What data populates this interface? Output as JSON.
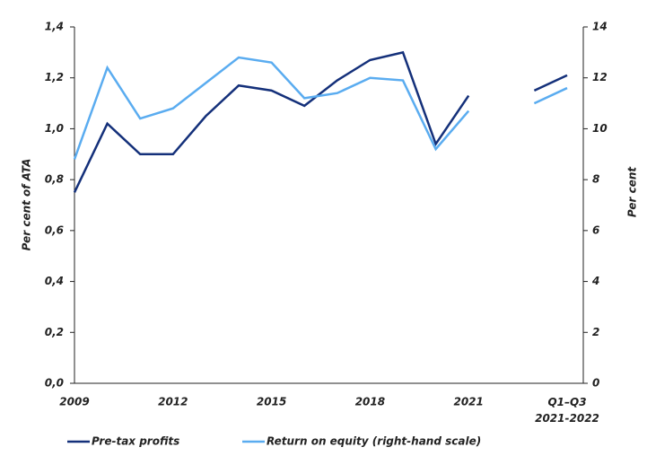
{
  "chart_data": {
    "type": "line",
    "categories": [
      "2009",
      null,
      null,
      "2012",
      null,
      null,
      "2015",
      null,
      null,
      "2018",
      null,
      null,
      "2021",
      null,
      null,
      "Q1–Q3\n2021-2022"
    ],
    "series": [
      {
        "name": "Pre-tax profits",
        "color": "#14307a",
        "values": [
          0.75,
          1.02,
          0.9,
          0.9,
          1.05,
          1.17,
          1.15,
          1.09,
          1.19,
          1.27,
          1.3,
          0.94,
          1.13,
          null,
          1.15,
          1.21
        ]
      },
      {
        "name": "Return on equity (right-hand scale)",
        "color": "#5aacf0",
        "axis": "y2",
        "values": [
          8.8,
          12.4,
          10.4,
          10.8,
          11.8,
          12.8,
          12.6,
          11.2,
          11.4,
          12.0,
          11.9,
          9.2,
          10.7,
          null,
          11.0,
          11.6
        ]
      }
    ],
    "ylabel": "Per cent of ATA",
    "y2label": "Per cent",
    "ylim": [
      0,
      1.4
    ],
    "yticks": [
      {
        "value": 0,
        "label": "0,0"
      },
      {
        "value": 0.2,
        "label": "0,2"
      },
      {
        "value": 0.4,
        "label": "0,4"
      },
      {
        "value": 0.6,
        "label": "0,6"
      },
      {
        "value": 0.8,
        "label": "0,8"
      },
      {
        "value": 1.0,
        "label": "1,0"
      },
      {
        "value": 1.2,
        "label": "1,2"
      },
      {
        "value": 1.4,
        "label": "1,4"
      }
    ],
    "y2lim": [
      0,
      14
    ],
    "y2ticks": [
      0,
      2,
      4,
      6,
      8,
      10,
      12,
      14
    ],
    "legend": "bottom"
  }
}
